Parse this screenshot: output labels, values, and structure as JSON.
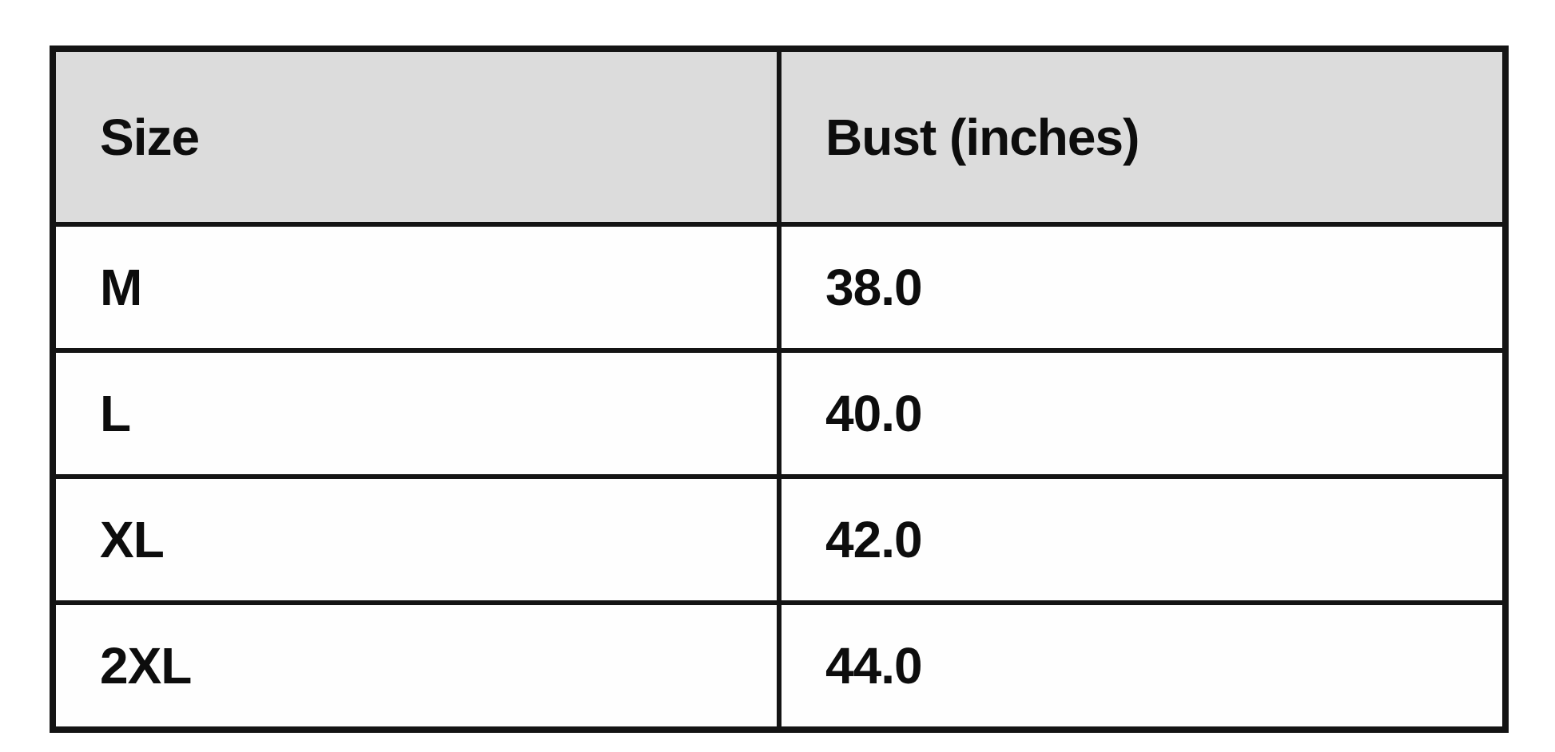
{
  "table": {
    "columns": [
      "Size",
      "Bust (inches)"
    ],
    "rows": [
      [
        "M",
        "38.0"
      ],
      [
        "L",
        "40.0"
      ],
      [
        "XL",
        "42.0"
      ],
      [
        "2XL",
        "44.0"
      ]
    ]
  },
  "chart_data": {
    "type": "table",
    "columns": [
      "Size",
      "Bust (inches)"
    ],
    "rows": [
      [
        "M",
        38.0
      ],
      [
        "L",
        40.0
      ],
      [
        "XL",
        42.0
      ],
      [
        "2XL",
        44.0
      ]
    ],
    "title": "",
    "layout_hints": {
      "header_background": "#dcdcdc",
      "grid": "on",
      "column_split": "50/50"
    }
  },
  "colors": {
    "page_background": "#ffffff",
    "header_background": "#dcdcdc",
    "cell_background": "#fefefe",
    "border": "#141414",
    "text": "#0d0d0d"
  }
}
